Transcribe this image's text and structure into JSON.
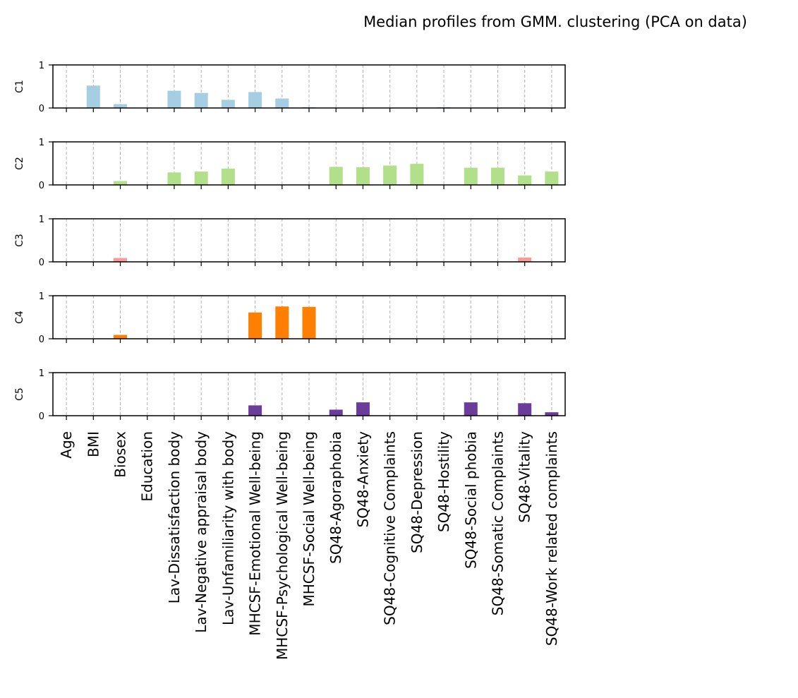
{
  "chart_data": {
    "type": "bar",
    "title": "Median profiles from GMM. clustering (PCA on data)",
    "categories": [
      "Age",
      "BMI",
      "Biosex",
      "Education",
      "Lav-Dissatisfaction body",
      "Lav-Negative appraisal body",
      "Lav-Unfamiliarity with body",
      "MHCSF-Emotional Well-being",
      "MHCSF-Psychological Well-being",
      "MHCSF-Social Well-being",
      "SQ48-Agoraphobia",
      "SQ48-Anxiety",
      "SQ48-Cognitive Complaints",
      "SQ48-Depression",
      "SQ48-Hostility",
      "SQ48-Social phobia",
      "SQ48-Somatic Complaints",
      "SQ48-Vitality",
      "SQ48-Work related complaints"
    ],
    "ylim": [
      0,
      1
    ],
    "yticks": [
      "0",
      "1"
    ],
    "grid": "x-dashed",
    "series": [
      {
        "name": "C1",
        "color": "#a6cee3",
        "values": [
          0,
          0.52,
          0.09,
          0,
          0.4,
          0.35,
          0.19,
          0.37,
          0.22,
          0.02,
          0,
          0,
          0,
          0,
          0.02,
          0,
          0,
          0,
          0
        ]
      },
      {
        "name": "C2",
        "color": "#b2df8a",
        "values": [
          0,
          0,
          0.09,
          0,
          0.29,
          0.31,
          0.38,
          0,
          0,
          0,
          0.42,
          0.41,
          0.45,
          0.49,
          0,
          0.4,
          0.4,
          0.22,
          0.31
        ]
      },
      {
        "name": "C3",
        "color": "#fb9a99",
        "values": [
          0,
          0,
          0.09,
          0,
          0,
          0,
          0,
          0,
          0,
          0,
          0,
          0,
          0,
          0,
          0,
          0,
          0,
          0.1,
          0
        ]
      },
      {
        "name": "C4",
        "color": "#ff7f00",
        "values": [
          0,
          0,
          0.09,
          0,
          0,
          0,
          0,
          0.61,
          0.75,
          0.74,
          0,
          0,
          0,
          0,
          0,
          0,
          0,
          0,
          0
        ]
      },
      {
        "name": "C5",
        "color": "#6a3d9a",
        "values": [
          0,
          0,
          0,
          0,
          0,
          0,
          0,
          0.24,
          0,
          0,
          0.14,
          0.31,
          0,
          0,
          0,
          0.31,
          0,
          0.29,
          0.08
        ]
      }
    ]
  }
}
